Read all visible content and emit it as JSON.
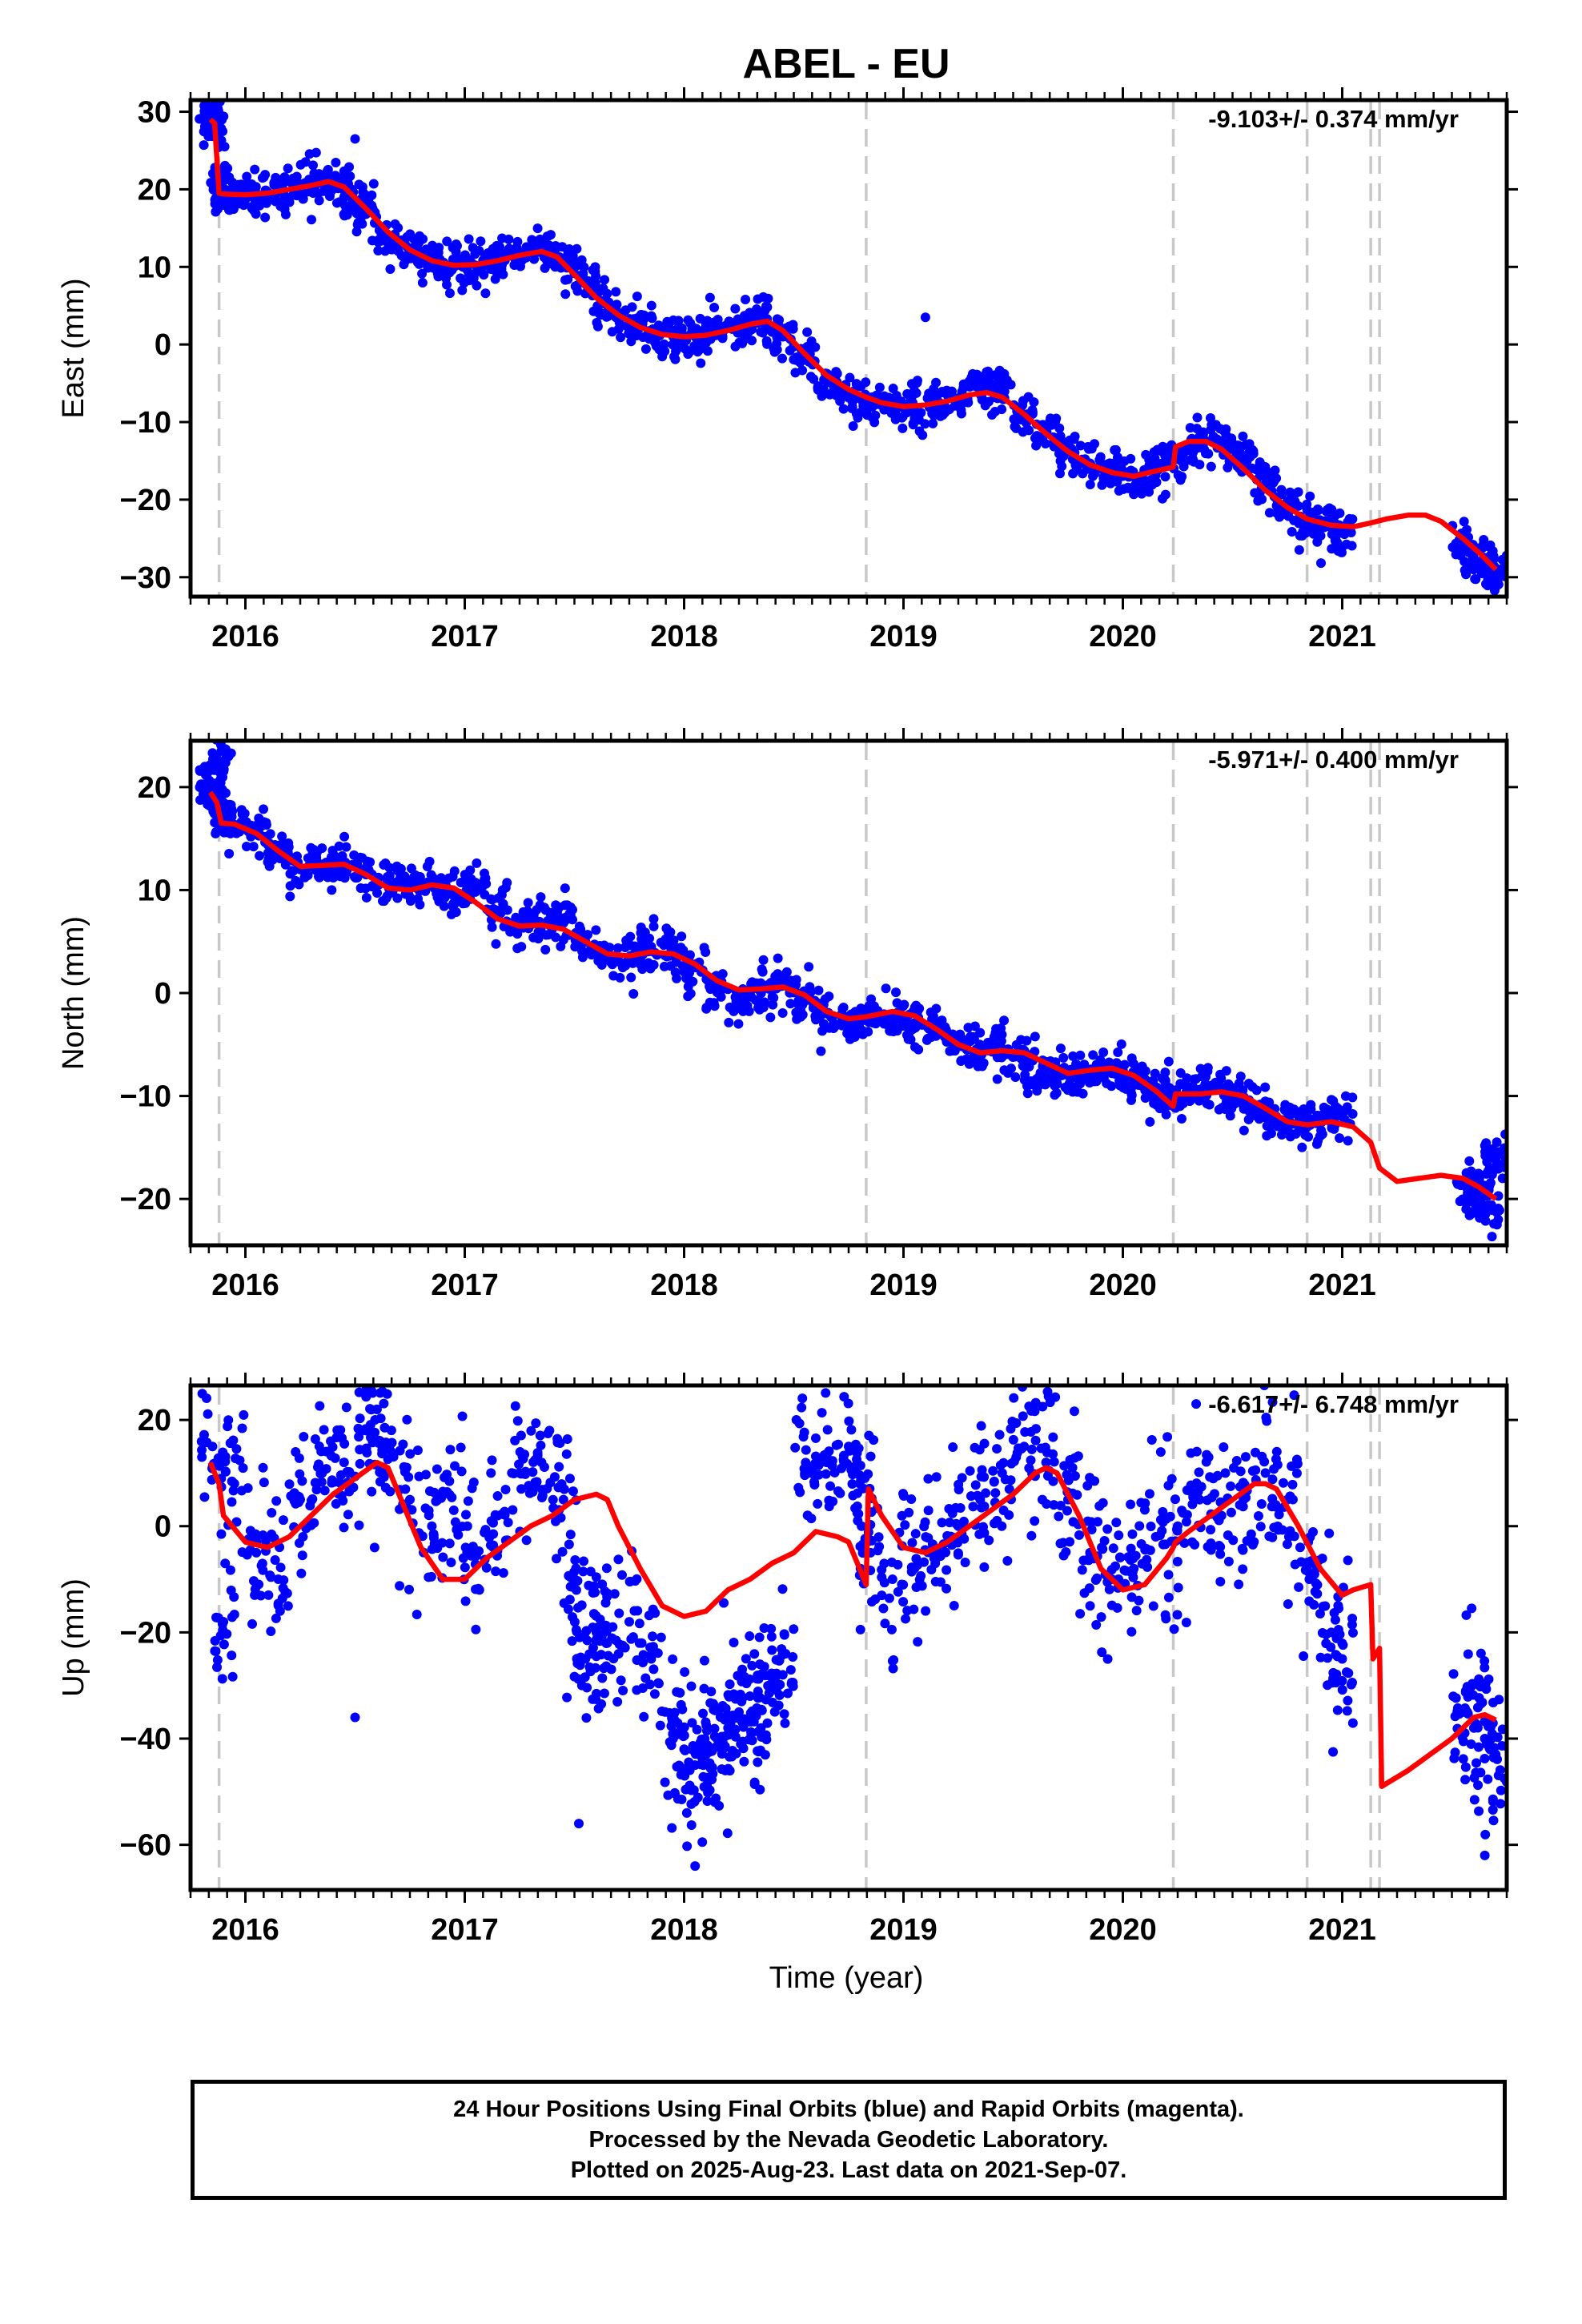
{
  "title": "ABEL - EU",
  "xlabel": "Time (year)",
  "footer": {
    "line1": "24 Hour Positions Using Final Orbits (blue) and Rapid Orbits (magenta).",
    "line2": "Processed by the Nevada Geodetic Laboratory.",
    "line3": "Plotted on 2025-Aug-23. Last data on 2021-Sep-07."
  },
  "colors": {
    "points": "#0000ff",
    "model": "#ff0000",
    "events": "#c8c8c8",
    "frame": "#000000"
  },
  "chart_data": [
    {
      "type": "scatter",
      "component": "East",
      "ylabel": "East (mm)",
      "rate_label": "-9.103+/- 0.374 mm/yr",
      "xlim": [
        2015.75,
        2021.75
      ],
      "ylim": [
        -32.5,
        31.5
      ],
      "yticks": [
        30,
        20,
        10,
        0,
        -10,
        -20,
        -30
      ],
      "xticks": [
        2016,
        2017,
        2018,
        2019,
        2020,
        2021
      ],
      "event_lines": [
        2015.88,
        2018.83,
        2020.23,
        2020.84,
        2021.13,
        2021.17
      ],
      "series": [
        {
          "name": "Final Orbits",
          "x": [
            2015.84,
            2015.86,
            2015.88,
            2015.9,
            2015.95,
            2016.05,
            2016.15,
            2016.25,
            2016.35,
            2016.45,
            2016.5,
            2016.55,
            2016.65,
            2016.75,
            2016.85,
            2016.95,
            2017.05,
            2017.15,
            2017.25,
            2017.35,
            2017.45,
            2017.55,
            2017.65,
            2017.75,
            2017.85,
            2017.95,
            2018.05,
            2018.15,
            2018.25,
            2018.35,
            2018.45,
            2018.55,
            2018.65,
            2018.75,
            2018.85,
            2018.95,
            2019.05,
            2019.15,
            2019.25,
            2019.35,
            2019.45,
            2019.55,
            2019.65,
            2019.75,
            2019.85,
            2019.95,
            2020.05,
            2020.15,
            2020.25,
            2020.35,
            2020.45,
            2020.55,
            2020.65,
            2020.75,
            2020.85,
            2020.95,
            2021.0,
            2021.55,
            2021.6,
            2021.65,
            2021.7,
            2019.1,
            2016.5
          ],
          "y": [
            29.5,
            28.0,
            20.5,
            19.5,
            19.2,
            19.5,
            20.0,
            20.5,
            21.0,
            20.2,
            18.5,
            16.8,
            13.8,
            11.8,
            10.5,
            10.0,
            10.2,
            11.0,
            11.8,
            12.0,
            10.5,
            8.0,
            5.0,
            2.8,
            1.5,
            1.0,
            1.0,
            1.6,
            2.5,
            3.0,
            1.0,
            -2.0,
            -4.8,
            -6.5,
            -7.5,
            -8.0,
            -8.0,
            -7.5,
            -7.0,
            -6.0,
            -6.5,
            -9.0,
            -11.5,
            -13.8,
            -15.5,
            -16.8,
            -17.0,
            -16.2,
            -14.8,
            -12.5,
            -12.5,
            -15.0,
            -18.0,
            -21.0,
            -22.5,
            -23.5,
            -23.8,
            -25.5,
            -27.5,
            -28.5,
            -30.0,
            3.5,
            26.5
          ]
        },
        {
          "name": "Model",
          "x": [
            2015.84,
            2015.86,
            2015.88,
            2015.9,
            2016.0,
            2016.1,
            2016.2,
            2016.3,
            2016.38,
            2016.45,
            2016.55,
            2016.65,
            2016.75,
            2016.85,
            2016.95,
            2017.05,
            2017.15,
            2017.25,
            2017.35,
            2017.42,
            2017.5,
            2017.6,
            2017.7,
            2017.8,
            2017.9,
            2018.0,
            2018.1,
            2018.2,
            2018.3,
            2018.38,
            2018.45,
            2018.55,
            2018.65,
            2018.75,
            2018.83,
            2018.9,
            2019.0,
            2019.1,
            2019.2,
            2019.3,
            2019.38,
            2019.45,
            2019.55,
            2019.65,
            2019.75,
            2019.85,
            2019.95,
            2020.05,
            2020.15,
            2020.23,
            2020.24,
            2020.3,
            2020.38,
            2020.45,
            2020.55,
            2020.65,
            2020.75,
            2020.84,
            2020.95,
            2021.05,
            2021.13,
            2021.2,
            2021.3,
            2021.38,
            2021.45,
            2021.55,
            2021.63,
            2021.7
          ],
          "y": [
            29.0,
            28.5,
            19.5,
            19.4,
            19.3,
            19.5,
            20.0,
            20.5,
            21.0,
            20.3,
            17.5,
            14.5,
            12.2,
            10.8,
            10.2,
            10.3,
            10.8,
            11.5,
            12.0,
            11.3,
            9.0,
            6.0,
            3.8,
            2.2,
            1.3,
            1.0,
            1.2,
            1.8,
            2.6,
            3.0,
            1.8,
            -1.2,
            -4.0,
            -5.8,
            -6.8,
            -7.5,
            -8.0,
            -7.8,
            -7.3,
            -6.5,
            -6.2,
            -6.8,
            -9.0,
            -11.5,
            -13.8,
            -15.5,
            -16.5,
            -17.0,
            -16.3,
            -15.8,
            -13.2,
            -12.5,
            -12.5,
            -13.5,
            -16.0,
            -18.8,
            -21.0,
            -22.5,
            -23.3,
            -23.5,
            -23.0,
            -22.5,
            -22.0,
            -22.0,
            -22.8,
            -25.0,
            -27.0,
            -29.0
          ]
        }
      ]
    },
    {
      "type": "scatter",
      "component": "North",
      "ylabel": "North (mm)",
      "rate_label": "-5.971+/- 0.400 mm/yr",
      "xlim": [
        2015.75,
        2021.75
      ],
      "ylim": [
        -24.5,
        24.5
      ],
      "yticks": [
        20,
        10,
        0,
        -10,
        -20
      ],
      "xticks": [
        2016,
        2017,
        2018,
        2019,
        2020,
        2021
      ],
      "event_lines": [
        2015.88,
        2018.83,
        2020.23,
        2020.84,
        2021.13,
        2021.17
      ],
      "series": [
        {
          "name": "Final Orbits",
          "x": [
            2015.84,
            2015.86,
            2015.89,
            2015.9,
            2015.95,
            2016.05,
            2016.15,
            2016.25,
            2016.35,
            2016.45,
            2016.55,
            2016.65,
            2016.75,
            2016.85,
            2016.95,
            2017.05,
            2017.15,
            2017.25,
            2017.35,
            2017.45,
            2017.55,
            2017.65,
            2017.75,
            2017.85,
            2017.95,
            2018.05,
            2018.15,
            2018.25,
            2018.35,
            2018.45,
            2018.55,
            2018.65,
            2018.75,
            2018.85,
            2018.95,
            2019.05,
            2019.15,
            2019.25,
            2019.35,
            2019.45,
            2019.55,
            2019.65,
            2019.75,
            2019.85,
            2019.95,
            2020.05,
            2020.15,
            2020.2,
            2020.3,
            2020.4,
            2020.5,
            2020.6,
            2020.7,
            2020.8,
            2020.9,
            2021.0,
            2021.57,
            2021.62,
            2021.67,
            2021.7
          ],
          "y": [
            20.5,
            19.0,
            23.5,
            16.5,
            16.2,
            15.5,
            13.5,
            12.0,
            12.5,
            12.5,
            11.5,
            10.5,
            10.5,
            10.5,
            9.5,
            10.0,
            8.0,
            6.5,
            6.5,
            6.8,
            5.0,
            3.5,
            3.5,
            4.5,
            4.0,
            2.5,
            0.5,
            -1.0,
            0.5,
            0.8,
            -0.5,
            -2.0,
            -2.5,
            -2.0,
            -2.5,
            -3.0,
            -3.5,
            -5.0,
            -5.5,
            -5.5,
            -6.5,
            -8.0,
            -8.0,
            -7.5,
            -7.8,
            -8.5,
            -9.5,
            -10.5,
            -9.5,
            -9.0,
            -10.0,
            -11.0,
            -12.0,
            -12.5,
            -12.5,
            -12.0,
            -19.0,
            -20.0,
            -21.0,
            -16.0
          ]
        },
        {
          "name": "Model",
          "x": [
            2015.84,
            2015.87,
            2015.89,
            2015.95,
            2016.05,
            2016.15,
            2016.25,
            2016.35,
            2016.45,
            2016.55,
            2016.65,
            2016.75,
            2016.85,
            2016.95,
            2017.05,
            2017.15,
            2017.25,
            2017.35,
            2017.45,
            2017.55,
            2017.65,
            2017.75,
            2017.85,
            2017.95,
            2018.05,
            2018.15,
            2018.25,
            2018.35,
            2018.45,
            2018.55,
            2018.65,
            2018.75,
            2018.83,
            2018.95,
            2019.05,
            2019.15,
            2019.25,
            2019.35,
            2019.45,
            2019.55,
            2019.65,
            2019.75,
            2019.85,
            2019.95,
            2020.05,
            2020.15,
            2020.23,
            2020.24,
            2020.35,
            2020.45,
            2020.55,
            2020.65,
            2020.75,
            2020.84,
            2020.95,
            2021.05,
            2021.13,
            2021.17,
            2021.25,
            2021.35,
            2021.45,
            2021.55,
            2021.62,
            2021.7
          ],
          "y": [
            19.5,
            18.5,
            16.5,
            16.4,
            15.5,
            13.8,
            12.3,
            12.4,
            12.5,
            11.5,
            10.2,
            10.0,
            10.5,
            10.2,
            8.8,
            7.2,
            6.5,
            6.6,
            6.2,
            5.0,
            3.8,
            3.6,
            4.0,
            3.8,
            2.8,
            1.2,
            0.3,
            0.4,
            0.6,
            -0.2,
            -1.8,
            -2.5,
            -2.3,
            -1.8,
            -2.2,
            -3.5,
            -5.0,
            -5.8,
            -5.6,
            -5.8,
            -6.8,
            -7.8,
            -7.5,
            -7.3,
            -8.0,
            -9.5,
            -11.0,
            -9.8,
            -9.8,
            -9.6,
            -10.0,
            -11.2,
            -12.5,
            -12.8,
            -12.5,
            -13.0,
            -14.5,
            -17.0,
            -18.3,
            -18.0,
            -17.7,
            -18.0,
            -18.8,
            -20.0
          ]
        }
      ]
    },
    {
      "type": "scatter",
      "component": "Up",
      "ylabel": "Up (mm)",
      "rate_label": "-6.617+/- 6.748 mm/yr",
      "xlim": [
        2015.75,
        2021.75
      ],
      "ylim": [
        -68.5,
        26.5
      ],
      "yticks": [
        20,
        0,
        -20,
        -40,
        -60
      ],
      "xticks": [
        2016,
        2017,
        2018,
        2019,
        2020,
        2021
      ],
      "event_lines": [
        2015.88,
        2018.83,
        2020.23,
        2020.84,
        2021.13,
        2021.17
      ],
      "series": [
        {
          "name": "Final Orbits",
          "x": [
            2015.85,
            2015.9,
            2015.95,
            2016.05,
            2016.15,
            2016.25,
            2016.35,
            2016.45,
            2016.55,
            2016.6,
            2016.65,
            2016.75,
            2016.85,
            2016.95,
            2017.05,
            2017.15,
            2017.25,
            2017.35,
            2017.45,
            2017.5,
            2017.55,
            2017.6,
            2017.65,
            2017.75,
            2017.85,
            2017.95,
            2018.0,
            2018.05,
            2018.1,
            2018.15,
            2018.2,
            2018.25,
            2018.3,
            2018.35,
            2018.4,
            2018.45,
            2018.55,
            2018.65,
            2018.75,
            2018.8,
            2018.85,
            2018.95,
            2019.05,
            2019.15,
            2019.25,
            2019.35,
            2019.45,
            2019.55,
            2019.65,
            2019.75,
            2019.85,
            2019.95,
            2020.05,
            2020.15,
            2020.25,
            2020.35,
            2020.45,
            2020.55,
            2020.65,
            2020.75,
            2020.85,
            2020.95,
            2021.0,
            2021.55,
            2021.6,
            2021.65,
            2021.7,
            2016.5,
            2017.52,
            2018.05,
            2021.65
          ],
          "y": [
            15.0,
            -18.0,
            8.0,
            -5.0,
            -10.0,
            5.0,
            10.0,
            12.0,
            18.0,
            22.0,
            15.0,
            5.0,
            0.0,
            3.0,
            -5.0,
            2.0,
            10.0,
            12.0,
            5.0,
            -10.0,
            -25.0,
            -20.0,
            -22.0,
            -18.0,
            -25.0,
            -40.0,
            -42.0,
            -45.0,
            -43.0,
            -40.0,
            -38.0,
            -35.0,
            -32.0,
            -38.0,
            -30.0,
            -28.0,
            10.0,
            12.0,
            15.0,
            8.0,
            -5.0,
            -10.0,
            -8.0,
            -5.0,
            0.0,
            5.0,
            10.0,
            15.0,
            12.0,
            5.0,
            -5.0,
            -10.0,
            -8.0,
            -2.0,
            0.0,
            5.0,
            2.0,
            5.0,
            10.0,
            5.0,
            -10.0,
            -20.0,
            -25.0,
            -35.0,
            -38.0,
            -40.0,
            -43.0,
            -36.0,
            -56.0,
            -64.0,
            -62.0
          ]
        },
        {
          "name": "Model",
          "x": [
            2015.84,
            2015.86,
            2015.88,
            2015.9,
            2016.0,
            2016.1,
            2016.2,
            2016.3,
            2016.4,
            2016.5,
            2016.6,
            2016.65,
            2016.7,
            2016.8,
            2016.9,
            2017.0,
            2017.1,
            2017.2,
            2017.3,
            2017.4,
            2017.5,
            2017.6,
            2017.65,
            2017.7,
            2017.8,
            2017.9,
            2018.0,
            2018.1,
            2018.2,
            2018.3,
            2018.4,
            2018.5,
            2018.6,
            2018.7,
            2018.75,
            2018.83,
            2018.84,
            2018.9,
            2019.0,
            2019.1,
            2019.2,
            2019.3,
            2019.4,
            2019.5,
            2019.6,
            2019.65,
            2019.7,
            2019.8,
            2019.9,
            2020.0,
            2020.1,
            2020.2,
            2020.23,
            2020.24,
            2020.3,
            2020.4,
            2020.5,
            2020.6,
            2020.65,
            2020.7,
            2020.8,
            2020.9,
            2021.0,
            2021.05,
            2021.13,
            2021.14,
            2021.17,
            2021.18,
            2021.3,
            2021.4,
            2021.5,
            2021.6,
            2021.65,
            2021.7
          ],
          "y": [
            12.0,
            10.0,
            8.0,
            2.0,
            -3.0,
            -4.0,
            -2.0,
            2.0,
            6.0,
            9.0,
            12.0,
            11.0,
            6.0,
            -4.0,
            -10.0,
            -10.0,
            -6.0,
            -3.0,
            0.0,
            2.0,
            5.0,
            6.0,
            5.0,
            0.0,
            -8.0,
            -15.0,
            -17.0,
            -16.0,
            -12.0,
            -10.0,
            -7.0,
            -5.0,
            -1.0,
            -2.0,
            -3.0,
            -11.0,
            7.0,
            2.0,
            -4.0,
            -5.0,
            -3.0,
            0.0,
            3.0,
            6.0,
            10.0,
            11.0,
            10.0,
            2.0,
            -8.0,
            -12.0,
            -11.0,
            -6.0,
            -4.0,
            -3.0,
            -1.0,
            2.0,
            5.0,
            8.0,
            8.0,
            7.0,
            0.0,
            -8.0,
            -13.0,
            -12.0,
            -11.0,
            -25.0,
            -23.0,
            -49.0,
            -46.0,
            -43.0,
            -40.0,
            -36.0,
            -35.5,
            -36.5
          ]
        }
      ]
    }
  ]
}
